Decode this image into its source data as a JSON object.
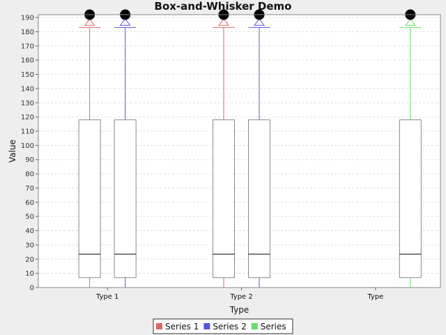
{
  "chart_data": {
    "type": "box",
    "title": "Box-and-Whisker Demo",
    "xlabel": "Type",
    "ylabel": "Value",
    "ylim": [
      0,
      192
    ],
    "yticks": [
      0,
      10,
      20,
      30,
      40,
      50,
      60,
      70,
      80,
      90,
      100,
      110,
      120,
      130,
      140,
      150,
      160,
      170,
      180,
      190
    ],
    "grid": true,
    "legend_position": "bottom",
    "categories": [
      "Type 1",
      "Type 2",
      "Type"
    ],
    "series": [
      {
        "name": "Series 1",
        "color": "#e06666",
        "boxes": [
          {
            "category": "Type 1",
            "min": 0,
            "q1": 7,
            "median": 23.5,
            "q3": 118,
            "whisker_high": 183,
            "mean": 186,
            "outlier": 192
          },
          {
            "category": "Type 2",
            "min": 0,
            "q1": 7,
            "median": 23.5,
            "q3": 118,
            "whisker_high": 183,
            "mean": 186,
            "outlier": 192
          },
          null
        ]
      },
      {
        "name": "Series 2",
        "color": "#5555dd",
        "boxes": [
          {
            "category": "Type 1",
            "min": 0,
            "q1": 7,
            "median": 23.5,
            "q3": 118,
            "whisker_high": 183,
            "mean": 186,
            "outlier": 192
          },
          {
            "category": "Type 2",
            "min": 0,
            "q1": 7,
            "median": 23.5,
            "q3": 118,
            "whisker_high": 183,
            "mean": 186,
            "outlier": 192
          },
          null
        ]
      },
      {
        "name": "Series",
        "color": "#66dd66",
        "boxes": [
          null,
          null,
          {
            "category": "Type",
            "min": 0,
            "q1": 7,
            "median": 23.5,
            "q3": 118,
            "whisker_high": 183,
            "mean": 186,
            "outlier": 192
          }
        ]
      }
    ]
  },
  "colors": {
    "background": "#eeeeee",
    "plot_background": "#ffffff",
    "grid": "#dddddd",
    "box_outline": "#888888",
    "median": "#000000"
  }
}
